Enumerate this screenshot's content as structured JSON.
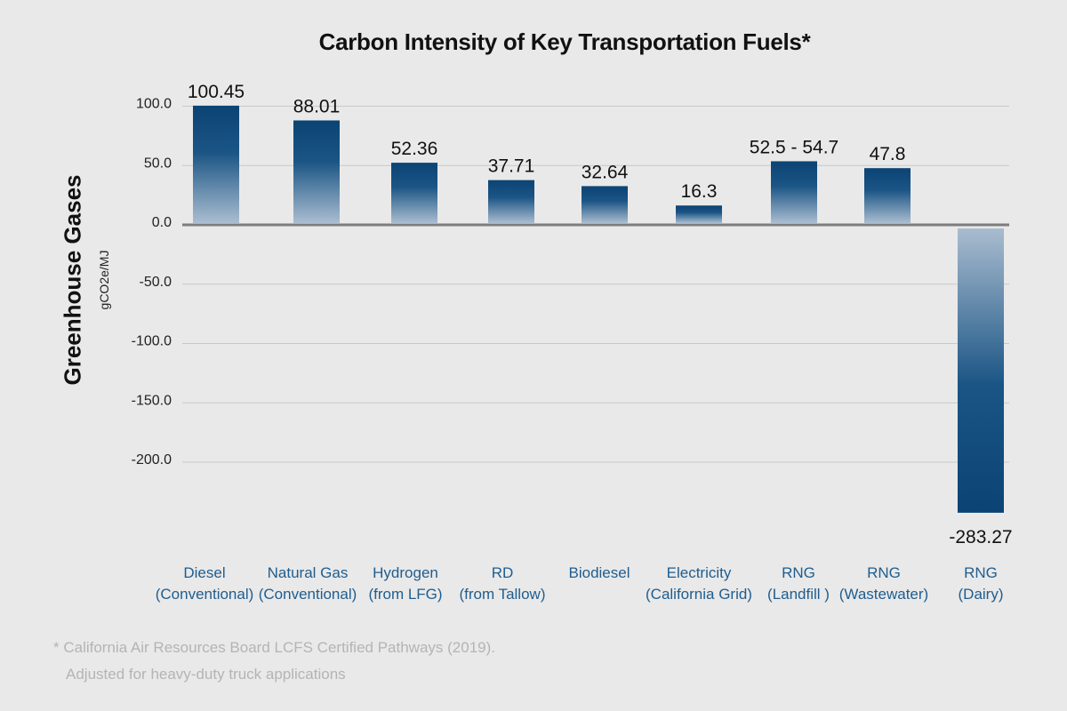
{
  "chart_data": {
    "type": "bar",
    "title": "Carbon Intensity of Key Transportation Fuels*",
    "ylabel": "Greenhouse Gases",
    "ylabel_sub": "gCO2e/MJ",
    "ylim": [
      -250,
      100
    ],
    "yticks": [
      100.0,
      50.0,
      0.0,
      -50.0,
      -100.0,
      -150.0,
      -200.0
    ],
    "ytick_labels": [
      "100.0",
      "50.0",
      "0.0",
      "-50.0",
      "-100.0",
      "-150.0",
      "-200.0"
    ],
    "grid": true,
    "categories": [
      [
        "Diesel",
        "(Conventional)"
      ],
      [
        "Natural Gas",
        "(Conventional)"
      ],
      [
        "Hydrogen",
        "(from LFG)"
      ],
      [
        "RD",
        "(from Tallow)"
      ],
      [
        "Biodiesel",
        ""
      ],
      [
        "Electricity",
        "(California Grid)"
      ],
      [
        "RNG",
        "(Landfill )"
      ],
      [
        "RNG",
        "(Wastewater)"
      ],
      [
        "RNG",
        "(Dairy)"
      ]
    ],
    "values": [
      100.45,
      88.01,
      52.36,
      37.71,
      32.64,
      16.3,
      53.6,
      47.8,
      -283.27
    ],
    "value_labels": [
      "100.45",
      "88.01",
      "52.36",
      "37.71",
      "32.64",
      "16.3",
      "52.5 - 54.7",
      "47.8",
      "-283.27"
    ],
    "colors": {
      "bar_dark": "#0b4474",
      "bar_light": "#a9bccf",
      "category_text": "#1f5d8f",
      "grid": "#c9c9c9",
      "zero_line": "#7d7d7d"
    }
  },
  "footnote": {
    "line1": "* California Air Resources Board LCFS Certified Pathways (2019).",
    "line2": "Adjusted for heavy-duty truck applications"
  }
}
